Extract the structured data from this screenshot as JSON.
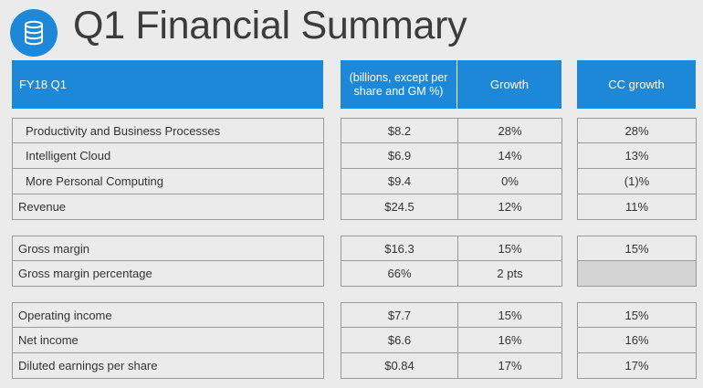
{
  "title": "Q1 Financial Summary",
  "header": {
    "period": "FY18 Q1",
    "units": "(billions, except per share and GM %)",
    "growth": "Growth",
    "cc_growth": "CC growth"
  },
  "groups": [
    {
      "rows": [
        {
          "label": "Productivity and Business Processes",
          "value": "$8.2",
          "growth": "28%",
          "cc_growth": "28%",
          "indent": true
        },
        {
          "label": "Intelligent Cloud",
          "value": "$6.9",
          "growth": "14%",
          "cc_growth": "13%",
          "indent": true
        },
        {
          "label": "More Personal Computing",
          "value": "$9.4",
          "growth": "0%",
          "cc_growth": "(1)%",
          "indent": true
        },
        {
          "label": "Revenue",
          "value": "$24.5",
          "growth": "12%",
          "cc_growth": "11%",
          "indent": false
        }
      ]
    },
    {
      "rows": [
        {
          "label": "Gross margin",
          "value": "$16.3",
          "growth": "15%",
          "cc_growth": "15%",
          "indent": false
        },
        {
          "label": "Gross margin percentage",
          "value": "66%",
          "growth": "2 pts",
          "cc_growth": "",
          "indent": false
        }
      ]
    },
    {
      "rows": [
        {
          "label": "Operating income",
          "value": "$7.7",
          "growth": "15%",
          "cc_growth": "15%",
          "indent": false
        },
        {
          "label": "Net income",
          "value": "$6.6",
          "growth": "16%",
          "cc_growth": "16%",
          "indent": false
        },
        {
          "label": "Diluted earnings per share",
          "value": "$0.84",
          "growth": "17%",
          "cc_growth": "17%",
          "indent": false
        }
      ]
    }
  ],
  "icon": "database-icon",
  "colors": {
    "accent": "#1e88d8",
    "background": "#ebebeb",
    "blank_cell": "#d4d4d4"
  }
}
